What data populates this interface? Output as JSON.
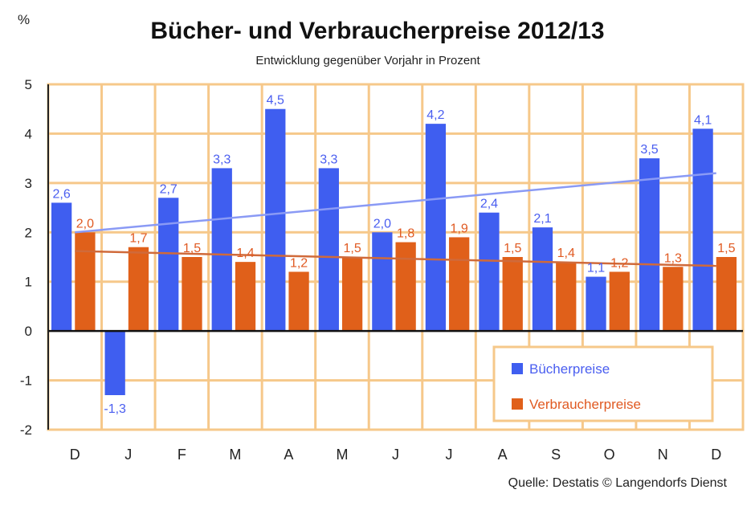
{
  "chart_data": {
    "type": "bar",
    "title": "Bücher- und Verbraucherpreise 2012/13",
    "subtitle": "Entwicklung gegenüber Vorjahr in Prozent",
    "unit_label": "%",
    "categories": [
      "D",
      "J",
      "F",
      "M",
      "A",
      "M",
      "J",
      "J",
      "A",
      "S",
      "O",
      "N",
      "D"
    ],
    "series": [
      {
        "name": "Bücherpreise",
        "color": "#3f5ef0",
        "values": [
          2.6,
          -1.3,
          2.7,
          3.3,
          4.5,
          3.3,
          2.0,
          4.2,
          2.4,
          2.1,
          1.1,
          3.5,
          4.1
        ],
        "labels": [
          "2,6",
          "-1,3",
          "2,7",
          "3,3",
          "4,5",
          "3,3",
          "2,0",
          "4,2",
          "2,4",
          "2,1",
          "1,1",
          "3,5",
          "4,1"
        ]
      },
      {
        "name": "Verbraucherpreise",
        "color": "#e0601a",
        "values": [
          2.0,
          1.7,
          1.5,
          1.4,
          1.2,
          1.5,
          1.8,
          1.9,
          1.5,
          1.4,
          1.2,
          1.3,
          1.5
        ],
        "labels": [
          "2,0",
          "1,7",
          "1,5",
          "1,4",
          "1,2",
          "1,5",
          "1,8",
          "1,9",
          "1,5",
          "1,4",
          "1,2",
          "1,3",
          "1,5"
        ]
      }
    ],
    "trendlines": [
      {
        "series": "Bücherpreise",
        "color": "#8a9af5",
        "start": 2.0,
        "end": 3.2
      },
      {
        "series": "Verbraucherpreise",
        "color": "#d06a3a",
        "start": 1.62,
        "end": 1.32
      }
    ],
    "ylim": [
      -2,
      5
    ],
    "yticks": [
      "5",
      "4",
      "3",
      "2",
      "1",
      "0",
      "-1",
      "-2"
    ],
    "grid": true,
    "grid_color": "#f6c88a",
    "legend_position": "bottom-right",
    "source": "Quelle: Destatis © Langendorfs Dienst"
  }
}
